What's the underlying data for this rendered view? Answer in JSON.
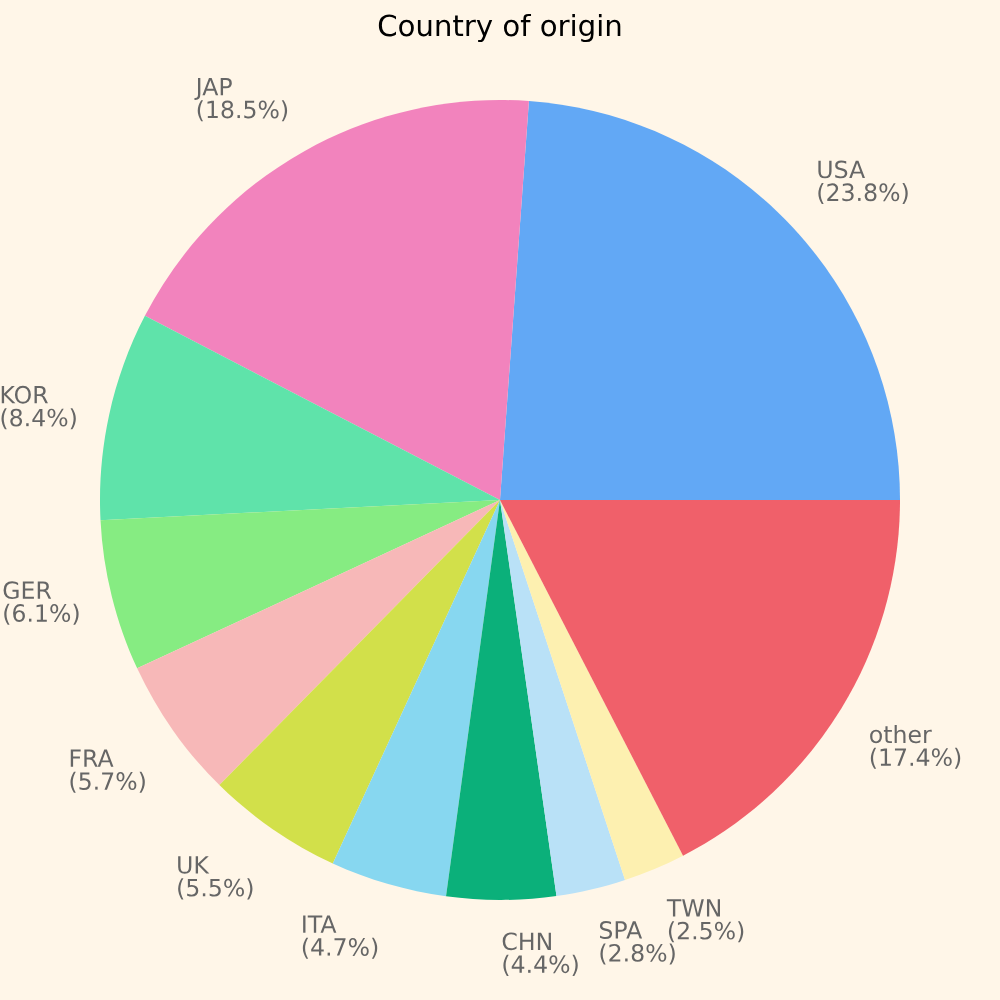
{
  "chart_data": {
    "type": "pie",
    "title": "Country of origin",
    "categories": [
      "USA",
      "JAP",
      "KOR",
      "GER",
      "FRA",
      "UK",
      "ITA",
      "CHN",
      "SPA",
      "TWN",
      "other"
    ],
    "values": [
      23.8,
      18.5,
      8.4,
      6.1,
      5.7,
      5.5,
      4.7,
      4.4,
      2.8,
      2.5,
      17.4
    ],
    "value_labels": [
      "(23.8%)",
      "(18.5%)",
      "(8.4%)",
      "(6.1%)",
      "(5.7%)",
      "(5.5%)",
      "(4.7%)",
      "(4.4%)",
      "(2.8%)",
      "(2.5%)",
      "(17.4%)"
    ],
    "colors": [
      "#62a8f5",
      "#f283bd",
      "#5fe3aa",
      "#86ec82",
      "#f7b8b8",
      "#d2e04a",
      "#87d7f0",
      "#0bb07a",
      "#b9e1f7",
      "#fdf0b0",
      "#f0606a"
    ]
  }
}
